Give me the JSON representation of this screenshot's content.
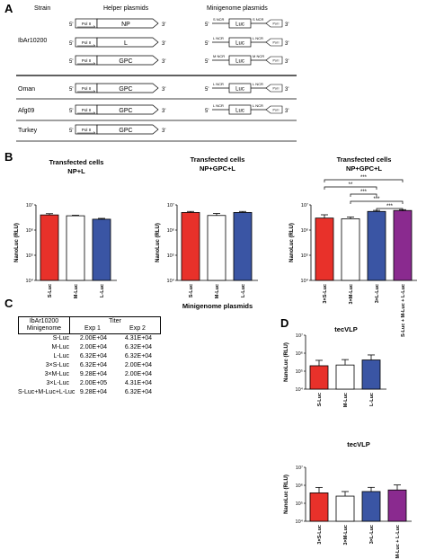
{
  "panels": {
    "A": "A",
    "B": "B",
    "C": "C",
    "D": "D"
  },
  "panel_a": {
    "headers": {
      "strain": "Strain",
      "helper": "Helper plasmids",
      "minigenome": "Minigenome plasmids"
    },
    "prime5": "5'",
    "prime3": "3'",
    "pol2": "Pol II",
    "pol1": "Pol I",
    "luc": "Luc",
    "strains": [
      {
        "name": "IbAr10200",
        "rows": [
          {
            "helper": "NP",
            "mg_left": "S NCR",
            "mg_right": "S NCR"
          },
          {
            "helper": "L",
            "mg_left": "L NCR",
            "mg_right": "L NCR"
          },
          {
            "helper": "GPC",
            "mg_left": "M NCR",
            "mg_right": "M NCR"
          }
        ]
      },
      {
        "name": "Oman",
        "rows": [
          {
            "helper": "GPC",
            "mg_left": "L NCR",
            "mg_right": "L NCR"
          }
        ]
      },
      {
        "name": "Afg09",
        "rows": [
          {
            "helper": "GPC",
            "mg_left": "L NCR",
            "mg_right": "L NCR"
          }
        ]
      },
      {
        "name": "Turkey",
        "rows": [
          {
            "helper": "GPC",
            "mg_left": "",
            "mg_right": ""
          }
        ]
      }
    ]
  },
  "colors": {
    "red": "#e8312a",
    "white": "#ffffff",
    "blue": "#3a55a4",
    "purple": "#8a2a8f"
  },
  "panel_c": {
    "h_left1": "IbAr10200",
    "h_left2": "Minigenome",
    "h_titer": "Titer",
    "h_exp1": "Exp 1",
    "h_exp2": "Exp 2",
    "rows": [
      {
        "mg": "S-Luc",
        "e1": "2.00E+04",
        "e2": "4.31E+04"
      },
      {
        "mg": "M-Luc",
        "e1": "2.00E+04",
        "e2": "6.32E+04"
      },
      {
        "mg": "L-Luc",
        "e1": "6.32E+04",
        "e2": "6.32E+04"
      },
      {
        "mg": "3×S-Luc",
        "e1": "6.32E+04",
        "e2": "2.00E+04"
      },
      {
        "mg": "3×M-Luc",
        "e1": "9.28E+04",
        "e2": "2.00E+04"
      },
      {
        "mg": "3×L-Luc",
        "e1": "2.00E+05",
        "e2": "4.31E+04"
      },
      {
        "mg": "S-Luc+M-Luc+L-Luc",
        "e1": "9.28E+04",
        "e2": "6.32E+04"
      }
    ]
  },
  "chart_data": [
    {
      "type": "bar",
      "id": "b1",
      "title": "Transfected cells",
      "subtitle": "NP+L",
      "ylabel": "NanoLuc (RLU)",
      "yscale": "log",
      "ylim": [
        10000,
        10000000
      ],
      "yticks": [
        "10⁴",
        "10⁵",
        "10⁶",
        "10⁷"
      ],
      "categories": [
        "S-Luc",
        "M-Luc",
        "L-Luc"
      ],
      "values": [
        4000000,
        3700000,
        2700000
      ],
      "errors": [
        1.12,
        1.05,
        1.08
      ],
      "colors": [
        "red",
        "white",
        "blue"
      ]
    },
    {
      "type": "bar",
      "id": "b2",
      "title": "Transfected cells",
      "subtitle": "NP+GPC+L",
      "ylabel": "NanoLuc (RLU)",
      "xlabel": "Minigenome plasmids",
      "yscale": "log",
      "ylim": [
        10000,
        10000000
      ],
      "yticks": [
        "10⁴",
        "10⁵",
        "10⁶",
        "10⁷"
      ],
      "categories": [
        "S-Luc",
        "M-Luc",
        "L-Luc"
      ],
      "values": [
        5000000,
        3800000,
        5000000
      ],
      "errors": [
        1.1,
        1.2,
        1.1
      ],
      "colors": [
        "red",
        "white",
        "blue"
      ]
    },
    {
      "type": "bar",
      "id": "b3",
      "title": "Transfected  cells",
      "subtitle": "NP+GPC+L",
      "ylabel": "NanoLuc (RLU)",
      "yscale": "log",
      "ylim": [
        10000,
        10000000
      ],
      "yticks": [
        "10⁴",
        "10⁵",
        "10⁶",
        "10⁷"
      ],
      "categories": [
        "3×S-Luc",
        "3×M-Luc",
        "3×L-Luc",
        "S-Luc + M-Luc + L-Luc"
      ],
      "values": [
        3000000,
        2800000,
        5500000,
        6000000
      ],
      "errors": [
        1.35,
        1.18,
        1.1,
        1.08
      ],
      "colors": [
        "red",
        "white",
        "blue",
        "purple"
      ],
      "significance": [
        {
          "from": 0,
          "to": 3,
          "label": "***"
        },
        {
          "from": 0,
          "to": 2,
          "label": "**"
        },
        {
          "from": 1,
          "to": 2,
          "label": "***"
        },
        {
          "from": 1,
          "to": 3,
          "label": "***"
        },
        {
          "from": 2,
          "to": 3,
          "label": "***"
        }
      ]
    },
    {
      "type": "bar",
      "id": "d1",
      "title": "tecVLP",
      "ylabel": "NanoLuc (RLU)",
      "yscale": "log",
      "ylim": [
        10000,
        10000000
      ],
      "yticks": [
        "10⁴",
        "10⁵",
        "10⁶",
        "10⁷"
      ],
      "categories": [
        "S-Luc",
        "M-Luc",
        "L-Luc"
      ],
      "values": [
        200000,
        220000,
        420000
      ],
      "errors": [
        2.0,
        2.0,
        1.9
      ],
      "colors": [
        "red",
        "white",
        "blue"
      ]
    },
    {
      "type": "bar",
      "id": "d2",
      "title": "tecVLP",
      "ylabel": "NanoLuc (RLU)",
      "yscale": "log",
      "ylim": [
        10000,
        10000000
      ],
      "yticks": [
        "10⁴",
        "10⁵",
        "10⁶",
        "10⁷"
      ],
      "categories": [
        "3×S-Luc",
        "3×M-Luc",
        "3×L-Luc",
        "S-Luc + M-Luc + L-Luc"
      ],
      "values": [
        380000,
        250000,
        450000,
        550000
      ],
      "errors": [
        2.0,
        1.8,
        1.7,
        1.9
      ],
      "colors": [
        "red",
        "white",
        "blue",
        "purple"
      ]
    }
  ]
}
